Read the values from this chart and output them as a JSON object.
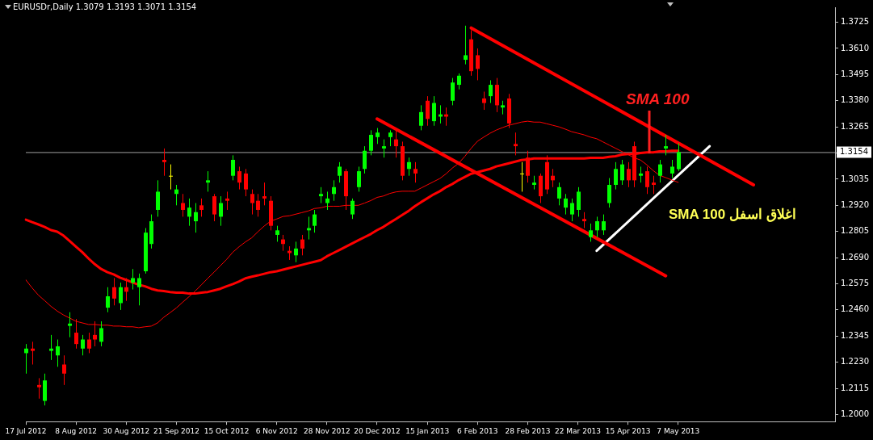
{
  "chart_data": {
    "type": "candlestick",
    "title": "EURUSDr,Daily 1.3079 1.3193 1.3071 1.3154",
    "categories": [
      "17 Jul 2012",
      null,
      null,
      null,
      null,
      null,
      null,
      null,
      "8 Aug 2012",
      null,
      null,
      null,
      null,
      null,
      null,
      null,
      "30 Aug 2012",
      null,
      null,
      null,
      null,
      null,
      null,
      null,
      "21 Sep 2012",
      null,
      null,
      null,
      null,
      null,
      null,
      null,
      "15 Oct 2012",
      null,
      null,
      null,
      null,
      null,
      null,
      null,
      "6 Nov 2012",
      null,
      null,
      null,
      null,
      null,
      null,
      null,
      "28 Nov 2012",
      null,
      null,
      null,
      null,
      null,
      null,
      null,
      "20 Dec 2012",
      null,
      null,
      null,
      null,
      null,
      null,
      null,
      "15 Jan 2013",
      null,
      null,
      null,
      null,
      null,
      null,
      null,
      "6 Feb 2013",
      null,
      null,
      null,
      null,
      null,
      null,
      null,
      "28 Feb 2013",
      null,
      null,
      null,
      null,
      null,
      null,
      null,
      "22 Mar 2013",
      null,
      null,
      null,
      null,
      null,
      null,
      null,
      "15 Apr 2013",
      null,
      null,
      null,
      null,
      null,
      null,
      null,
      "7 May 2013",
      null,
      null,
      null,
      null,
      null,
      null,
      null,
      null,
      null,
      null,
      null,
      null,
      null,
      null,
      null,
      null,
      null,
      null,
      null,
      null,
      null,
      null,
      null,
      null,
      null
    ],
    "ohlc": [
      [
        1.227,
        1.231,
        1.218,
        1.229
      ],
      [
        1.229,
        1.232,
        1.222,
        1.228
      ],
      [
        1.213,
        1.216,
        1.207,
        1.212
      ],
      [
        1.206,
        1.218,
        1.204,
        1.215
      ],
      [
        1.228,
        1.235,
        1.224,
        1.229
      ],
      [
        1.226,
        1.233,
        1.221,
        1.23
      ],
      [
        1.222,
        1.226,
        1.213,
        1.218
      ],
      [
        1.239,
        1.245,
        1.234,
        1.24
      ],
      [
        1.236,
        1.242,
        1.229,
        1.231
      ],
      [
        1.229,
        1.235,
        1.226,
        1.233
      ],
      [
        1.233,
        1.236,
        1.227,
        1.229
      ],
      [
        1.235,
        1.241,
        1.23,
        1.233
      ],
      [
        1.232,
        1.241,
        1.23,
        1.238
      ],
      [
        1.247,
        1.256,
        1.245,
        1.252
      ],
      [
        1.256,
        1.26,
        1.248,
        1.251
      ],
      [
        1.249,
        1.258,
        1.246,
        1.256
      ],
      [
        1.256,
        1.26,
        1.25,
        1.254
      ],
      [
        1.258,
        1.264,
        1.255,
        1.26
      ],
      [
        1.256,
        1.262,
        1.248,
        1.26
      ],
      [
        1.263,
        1.282,
        1.262,
        1.28
      ],
      [
        1.275,
        1.288,
        1.273,
        1.285
      ],
      [
        1.29,
        1.303,
        1.287,
        1.298
      ],
      [
        1.312,
        1.317,
        1.305,
        1.311
      ],
      [
        1.305,
        1.31,
        1.299,
        1.305
      ],
      [
        1.297,
        1.301,
        1.292,
        1.299
      ],
      [
        1.293,
        1.297,
        1.287,
        1.29
      ],
      [
        1.287,
        1.295,
        1.283,
        1.291
      ],
      [
        1.285,
        1.293,
        1.28,
        1.289
      ],
      [
        1.292,
        1.295,
        1.287,
        1.29
      ],
      [
        1.302,
        1.307,
        1.298,
        1.303
      ],
      [
        1.296,
        1.297,
        1.285,
        1.288
      ],
      [
        1.287,
        1.296,
        1.283,
        1.293
      ],
      [
        1.295,
        1.298,
        1.29,
        1.294
      ],
      [
        1.305,
        1.314,
        1.303,
        1.312
      ],
      [
        1.307,
        1.309,
        1.299,
        1.302
      ],
      [
        1.306,
        1.308,
        1.296,
        1.299
      ],
      [
        1.297,
        1.299,
        1.288,
        1.293
      ],
      [
        1.294,
        1.297,
        1.287,
        1.29
      ],
      [
        1.296,
        1.302,
        1.292,
        1.295
      ],
      [
        1.294,
        1.296,
        1.281,
        1.283
      ],
      [
        1.279,
        1.283,
        1.276,
        1.281
      ],
      [
        1.277,
        1.279,
        1.272,
        1.275
      ],
      [
        1.272,
        1.274,
        1.268,
        1.271
      ],
      [
        1.27,
        1.276,
        1.267,
        1.273
      ],
      [
        1.277,
        1.279,
        1.27,
        1.273
      ],
      [
        1.281,
        1.287,
        1.277,
        1.282
      ],
      [
        1.283,
        1.29,
        1.28,
        1.288
      ],
      [
        1.296,
        1.3,
        1.293,
        1.297
      ],
      [
        1.293,
        1.298,
        1.29,
        1.295
      ],
      [
        1.297,
        1.303,
        1.294,
        1.3
      ],
      [
        1.305,
        1.311,
        1.302,
        1.309
      ],
      [
        1.307,
        1.308,
        1.29,
        1.296
      ],
      [
        1.288,
        1.295,
        1.286,
        1.294
      ],
      [
        1.3,
        1.309,
        1.298,
        1.307
      ],
      [
        1.308,
        1.318,
        1.306,
        1.316
      ],
      [
        1.316,
        1.325,
        1.314,
        1.323
      ],
      [
        1.322,
        1.326,
        1.319,
        1.324
      ],
      [
        1.317,
        1.321,
        1.313,
        1.318
      ],
      [
        1.322,
        1.325,
        1.318,
        1.324
      ],
      [
        1.321,
        1.325,
        1.313,
        1.318
      ],
      [
        1.318,
        1.32,
        1.303,
        1.305
      ],
      [
        1.308,
        1.313,
        1.305,
        1.311
      ],
      [
        1.308,
        1.311,
        1.302,
        1.306
      ],
      [
        1.327,
        1.336,
        1.325,
        1.333
      ],
      [
        1.338,
        1.34,
        1.327,
        1.33
      ],
      [
        1.329,
        1.34,
        1.327,
        1.337
      ],
      [
        1.331,
        1.336,
        1.328,
        1.332
      ],
      [
        1.332,
        1.335,
        1.327,
        1.331
      ],
      [
        1.338,
        1.348,
        1.336,
        1.346
      ],
      [
        1.345,
        1.35,
        1.343,
        1.349
      ],
      [
        1.356,
        1.371,
        1.354,
        1.358
      ],
      [
        1.365,
        1.369,
        1.349,
        1.351
      ],
      [
        1.358,
        1.361,
        1.347,
        1.352
      ],
      [
        1.339,
        1.342,
        1.334,
        1.337
      ],
      [
        1.34,
        1.347,
        1.337,
        1.345
      ],
      [
        1.345,
        1.348,
        1.333,
        1.336
      ],
      [
        1.335,
        1.338,
        1.332,
        1.336
      ],
      [
        1.339,
        1.341,
        1.326,
        1.328
      ],
      [
        1.319,
        1.324,
        1.314,
        1.318
      ],
      [
        1.306,
        1.311,
        1.298,
        1.306
      ],
      [
        1.313,
        1.316,
        1.302,
        1.305
      ],
      [
        1.301,
        1.305,
        1.299,
        1.302
      ],
      [
        1.305,
        1.306,
        1.293,
        1.296
      ],
      [
        1.311,
        1.314,
        1.297,
        1.299
      ],
      [
        1.305,
        1.308,
        1.3,
        1.303
      ],
      [
        1.295,
        1.302,
        1.292,
        1.3
      ],
      [
        1.291,
        1.297,
        1.288,
        1.295
      ],
      [
        1.288,
        1.295,
        1.285,
        1.293
      ],
      [
        1.29,
        1.3,
        1.287,
        1.298
      ],
      [
        1.286,
        1.289,
        1.282,
        1.285
      ],
      [
        1.278,
        1.284,
        1.276,
        1.281
      ],
      [
        1.281,
        1.287,
        1.278,
        1.285
      ],
      [
        1.281,
        1.288,
        1.279,
        1.285
      ],
      [
        1.293,
        1.304,
        1.291,
        1.301
      ],
      [
        1.301,
        1.311,
        1.299,
        1.308
      ],
      [
        1.303,
        1.312,
        1.301,
        1.31
      ],
      [
        1.308,
        1.311,
        1.3,
        1.303
      ],
      [
        1.318,
        1.32,
        1.3,
        1.303
      ],
      [
        1.305,
        1.309,
        1.302,
        1.306
      ],
      [
        1.307,
        1.309,
        1.297,
        1.3
      ],
      [
        1.302,
        1.305,
        1.297,
        1.301
      ],
      [
        1.305,
        1.312,
        1.302,
        1.31
      ],
      [
        1.317,
        1.323,
        1.314,
        1.318
      ],
      [
        1.306,
        1.312,
        1.304,
        1.309
      ],
      [
        1.3079,
        1.3193,
        1.3071,
        1.3154
      ],
      null,
      null,
      null,
      null,
      null,
      null,
      null,
      null,
      null,
      null,
      null,
      null,
      null,
      null,
      null,
      null,
      null,
      null,
      null,
      null,
      null,
      null,
      null,
      null,
      null
    ],
    "colors": [
      "#00ff00",
      "#ff0000",
      "#ff0000",
      "#00ff00",
      "#00ff00",
      "#00ff00",
      "#ff0000",
      "#00ff00",
      "#ff0000",
      "#00ff00",
      "#ff0000",
      "#ff0000",
      "#00ff00",
      "#00ff00",
      "#ff0000",
      "#00ff00",
      "#ff0000",
      "#00ff00",
      "#00ff00",
      "#00ff00",
      "#00ff00",
      "#00ff00",
      "#ff0000",
      "#ffff00",
      "#00ff00",
      "#ff0000",
      "#00ff00",
      "#00ff00",
      "#ff0000",
      "#00ff00",
      "#ff0000",
      "#00ff00",
      "#ff0000",
      "#00ff00",
      "#ff0000",
      "#ff0000",
      "#ff0000",
      "#ff0000",
      "#ff0000",
      "#ff0000",
      "#00ff00",
      "#ff0000",
      "#ff0000",
      "#00ff00",
      "#ff0000",
      "#00ff00",
      "#00ff00",
      "#00ff00",
      "#00ff00",
      "#00ff00",
      "#00ff00",
      "#ff0000",
      "#00ff00",
      "#00ff00",
      "#00ff00",
      "#00ff00",
      "#00ff00",
      "#00ff00",
      "#00ff00",
      "#ff0000",
      "#ff0000",
      "#00ff00",
      "#ff0000",
      "#00ff00",
      "#ff0000",
      "#00ff00",
      "#00ff00",
      "#ff0000",
      "#00ff00",
      "#00ff00",
      "#00ff00",
      "#ff0000",
      "#ff0000",
      "#ff0000",
      "#00ff00",
      "#ff0000",
      "#00ff00",
      "#ff0000",
      "#ff0000",
      "#ffff00",
      "#ff0000",
      "#00ff00",
      "#ff0000",
      "#ff0000",
      "#ff0000",
      "#00ff00",
      "#00ff00",
      "#00ff00",
      "#00ff00",
      "#ff0000",
      "#00ff00",
      "#00ff00",
      "#00ff00",
      "#00ff00",
      "#00ff00",
      "#00ff00",
      "#ff0000",
      "#ff0000",
      "#00ff00",
      "#ff0000",
      "#ff0000",
      "#00ff00",
      "#00ff00",
      "#00ff00",
      "#00ff00",
      null,
      null,
      null,
      null,
      null,
      null,
      null,
      null,
      null,
      null,
      null,
      null,
      null,
      null,
      null,
      null,
      null,
      null,
      null,
      null,
      null,
      null,
      null,
      null,
      null
    ],
    "series": [
      {
        "type": "line",
        "color": "#ff0000",
        "values": [
          1.2857,
          1.2846,
          1.2836,
          1.2825,
          1.2811,
          1.2804,
          1.2787,
          1.2763,
          1.2738,
          1.2714,
          1.2686,
          1.2661,
          1.264,
          1.2626,
          1.2616,
          1.2602,
          1.2592,
          1.2581,
          1.2571,
          1.2564,
          1.2553,
          1.2546,
          1.2543,
          1.2539,
          1.2536,
          1.2536,
          1.2532,
          1.2532,
          1.2536,
          1.2539,
          1.2546,
          1.2553,
          1.2564,
          1.2574,
          1.2585,
          1.2599,
          1.2606,
          1.2612,
          1.2619,
          1.2626,
          1.263,
          1.2637,
          1.2644,
          1.2651,
          1.2658,
          1.2665,
          1.2672,
          1.2679,
          1.2696,
          1.271,
          1.2724,
          1.2738,
          1.2752,
          1.2766,
          1.278,
          1.2794,
          1.2811,
          1.2825,
          1.2843,
          1.286,
          1.2878,
          1.2895,
          1.2916,
          1.2934,
          1.2951,
          1.2968,
          1.2982,
          1.3,
          1.3014,
          1.3031,
          1.3045,
          1.3059,
          1.3066,
          1.3073,
          1.308,
          1.3091,
          1.3098,
          1.3105,
          1.3112,
          1.3119,
          1.3122,
          1.3126,
          1.3126,
          1.3126,
          1.3126,
          1.3126,
          1.3126,
          1.3126,
          1.3126,
          1.3126,
          1.3129,
          1.3129,
          1.3129,
          1.3133,
          1.3136,
          1.3143,
          1.3146,
          1.3146,
          1.315,
          1.3153,
          1.3153,
          1.3157,
          1.3157,
          1.316,
          1.316,
          null,
          null,
          null,
          null,
          null,
          null,
          null,
          null,
          null,
          null,
          null,
          null,
          null,
          null,
          null,
          null,
          null,
          null,
          null,
          null,
          null,
          null,
          null,
          null,
          null
        ]
      },
      {
        "type": "line",
        "color": "#ff0000",
        "values": [
          1.2592,
          1.2557,
          1.2525,
          1.2501,
          1.2476,
          1.2455,
          1.2438,
          1.2424,
          1.241,
          1.2403,
          1.2396,
          1.2396,
          1.2393,
          1.2393,
          1.2389,
          1.2389,
          1.2386,
          1.2386,
          1.2382,
          1.2386,
          1.2389,
          1.2403,
          1.2428,
          1.2448,
          1.2469,
          1.2494,
          1.2518,
          1.2543,
          1.2571,
          1.2599,
          1.2626,
          1.2654,
          1.2682,
          1.2714,
          1.2738,
          1.2759,
          1.2777,
          1.2804,
          1.2829,
          1.285,
          1.286,
          1.2871,
          1.2874,
          1.2881,
          1.2888,
          1.2895,
          1.2906,
          1.2909,
          1.2916,
          1.2916,
          1.2916,
          1.292,
          1.292,
          1.292,
          1.293,
          1.2941,
          1.2955,
          1.2961,
          1.2972,
          1.2979,
          1.2982,
          1.2982,
          1.2982,
          1.2996,
          1.301,
          1.3024,
          1.3038,
          1.3059,
          1.3084,
          1.3105,
          1.3136,
          1.3171,
          1.3202,
          1.322,
          1.3237,
          1.3251,
          1.3262,
          1.3272,
          1.3279,
          1.3286,
          1.329,
          1.3286,
          1.3286,
          1.3279,
          1.3272,
          1.3265,
          1.3255,
          1.3244,
          1.3237,
          1.323,
          1.322,
          1.3213,
          1.3199,
          1.3185,
          1.3171,
          1.3157,
          1.3143,
          1.3129,
          1.3119,
          1.3098,
          1.3073,
          1.3052,
          1.3042,
          1.3031,
          1.3021,
          null,
          null,
          null,
          null,
          null,
          null,
          null,
          null,
          null,
          null,
          null,
          null,
          null,
          null,
          null,
          null,
          null,
          null,
          null,
          null,
          null,
          null,
          null,
          null,
          null
        ]
      },
      {
        "type": "line",
        "color": "#ff0000",
        "values": [
          null,
          null,
          null,
          null,
          null,
          null,
          null,
          null,
          null,
          null,
          null,
          null,
          null,
          null,
          null,
          null,
          null,
          null,
          null,
          null,
          null,
          null,
          null,
          null,
          null,
          null,
          null,
          null,
          null,
          null,
          null,
          null,
          null,
          null,
          null,
          null,
          null,
          null,
          null,
          null,
          null,
          null,
          null,
          null,
          null,
          null,
          null,
          null,
          null,
          null,
          null,
          null,
          null,
          null,
          null,
          null,
          null,
          null,
          null,
          null,
          null,
          null,
          null,
          null,
          null,
          null,
          null,
          null,
          null,
          null,
          null,
          1.37,
          null,
          null,
          null,
          null,
          null,
          null,
          null,
          null,
          null,
          null,
          null,
          null,
          null,
          null,
          null,
          null,
          null,
          null,
          null,
          null,
          null,
          null,
          null,
          null,
          null,
          null,
          null,
          null,
          null,
          null,
          null,
          null,
          null,
          null,
          null,
          null,
          null,
          null,
          null,
          null,
          null,
          null,
          null,
          null,
          1.301,
          null,
          null,
          null,
          null,
          null,
          null,
          null,
          null,
          null,
          null,
          null,
          null,
          null
        ]
      },
      {
        "type": "line",
        "color": "#ff0000",
        "values": [
          null,
          null,
          null,
          null,
          null,
          null,
          null,
          null,
          null,
          null,
          null,
          null,
          null,
          null,
          null,
          null,
          null,
          null,
          null,
          null,
          null,
          null,
          null,
          null,
          null,
          null,
          null,
          null,
          null,
          null,
          null,
          null,
          null,
          null,
          null,
          null,
          null,
          null,
          null,
          null,
          null,
          null,
          null,
          null,
          null,
          null,
          null,
          null,
          null,
          null,
          null,
          null,
          null,
          null,
          null,
          null,
          1.33,
          null,
          null,
          null,
          null,
          null,
          null,
          null,
          null,
          null,
          null,
          null,
          null,
          null,
          null,
          null,
          null,
          null,
          null,
          null,
          null,
          null,
          null,
          null,
          null,
          null,
          null,
          null,
          null,
          null,
          null,
          null,
          null,
          null,
          null,
          null,
          null,
          null,
          null,
          null,
          null,
          null,
          null,
          null,
          null,
          null,
          1.261,
          null,
          null,
          null,
          null,
          null,
          null,
          null,
          null,
          null,
          null,
          null,
          null,
          null,
          null,
          null,
          null,
          null,
          null,
          null,
          null,
          null,
          null,
          null,
          null,
          null,
          null,
          null
        ]
      },
      {
        "type": "line",
        "color": "#ffffff",
        "values": [
          null,
          null,
          null,
          null,
          null,
          null,
          null,
          null,
          null,
          null,
          null,
          null,
          null,
          null,
          null,
          null,
          null,
          null,
          null,
          null,
          null,
          null,
          null,
          null,
          null,
          null,
          null,
          null,
          null,
          null,
          null,
          null,
          null,
          null,
          null,
          null,
          null,
          null,
          null,
          null,
          null,
          null,
          null,
          null,
          null,
          null,
          null,
          null,
          null,
          null,
          null,
          null,
          null,
          null,
          null,
          null,
          null,
          null,
          null,
          null,
          null,
          null,
          null,
          null,
          null,
          null,
          null,
          null,
          null,
          null,
          null,
          null,
          null,
          null,
          null,
          null,
          null,
          null,
          null,
          null,
          null,
          null,
          null,
          null,
          null,
          null,
          null,
          null,
          null,
          null,
          null,
          1.272,
          null,
          null,
          null,
          null,
          null,
          null,
          null,
          null,
          null,
          null,
          null,
          null,
          null,
          null,
          null,
          null,
          null,
          1.318,
          null,
          null,
          null,
          null,
          null,
          null,
          null,
          null,
          null,
          null,
          null,
          null,
          null,
          null,
          null,
          null,
          null,
          null,
          null,
          null
        ]
      }
    ],
    "ylim": [
      1.1969,
      1.3791
    ],
    "yticks": [
      {
        "value": 1.2,
        "label": "1.2000"
      },
      {
        "value": 1.2115,
        "label": "1.2115"
      },
      {
        "value": 1.223,
        "label": "1.2230"
      },
      {
        "value": 1.2345,
        "label": "1.2345"
      },
      {
        "value": 1.246,
        "label": "1.2460"
      },
      {
        "value": 1.2575,
        "label": "1.2575"
      },
      {
        "value": 1.269,
        "label": "1.2690"
      },
      {
        "value": 1.2805,
        "label": "1.2805"
      },
      {
        "value": 1.292,
        "label": "1.2920"
      },
      {
        "value": 1.3035,
        "label": "1.3035"
      },
      {
        "value": 1.315,
        "label": null
      },
      {
        "value": 1.3265,
        "label": "1.3265"
      },
      {
        "value": 1.338,
        "label": "1.3380"
      },
      {
        "value": 1.3495,
        "label": "1.3495"
      },
      {
        "value": 1.361,
        "label": "1.3610"
      },
      {
        "value": 1.3725,
        "label": "1.3725"
      }
    ],
    "ref_lines": [
      {
        "axis": "y",
        "value": 1.3154,
        "label": "1.3154",
        "color": "#a0a0a0"
      }
    ],
    "annotations": [
      {
        "text": "SMA 100",
        "y": 1.315
      },
      "اغلاق اسفل SMA 100"
    ],
    "marker": "none",
    "legend": false
  }
}
